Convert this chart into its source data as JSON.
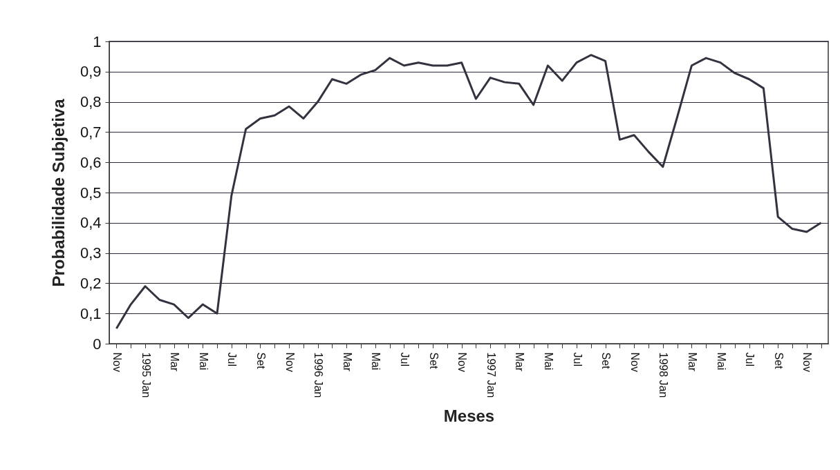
{
  "chart_data": {
    "type": "line",
    "xlabel": "Meses",
    "ylabel": "Probabilidade Subjetiva",
    "categories": [
      "Nov",
      null,
      "1995 Jan",
      null,
      "Mar",
      null,
      "Mai",
      null,
      "Jul",
      null,
      "Set",
      null,
      "Nov",
      null,
      "1996 Jan",
      null,
      "Mar",
      null,
      "Mai",
      null,
      "Jul",
      null,
      "Set",
      null,
      "Nov",
      null,
      "1997 Jan",
      null,
      "Mar",
      null,
      "Mai",
      null,
      "Jul",
      null,
      "Set",
      null,
      "Nov",
      null,
      "1998 Jan",
      null,
      "Mar",
      null,
      "Mai",
      null,
      "Jul",
      null,
      "Set",
      null,
      "Nov",
      null
    ],
    "series": [
      {
        "color": "#333340",
        "values": [
          0.05,
          0.13,
          0.19,
          0.145,
          0.13,
          0.085,
          0.13,
          0.1,
          0.49,
          0.71,
          0.745,
          0.755,
          0.785,
          0.745,
          0.8,
          0.875,
          0.86,
          0.89,
          0.905,
          0.945,
          0.92,
          0.93,
          0.92,
          0.92,
          0.93,
          0.81,
          0.88,
          0.865,
          0.86,
          0.79,
          0.92,
          0.87,
          0.93,
          0.955,
          0.935,
          0.675,
          0.69,
          0.635,
          0.585,
          0.75,
          0.92,
          0.945,
          0.93,
          0.895,
          0.875,
          0.845,
          0.42,
          0.38,
          0.37,
          0.4
        ]
      }
    ],
    "ylim": [
      0,
      1
    ],
    "yticks": [
      0,
      {
        "value": 0.1,
        "label": "0,1"
      },
      {
        "value": 0.2,
        "label": "0,2"
      },
      {
        "value": 0.3,
        "label": "0,3"
      },
      {
        "value": 0.4,
        "label": "0,4"
      },
      {
        "value": 0.5,
        "label": "0,5"
      },
      {
        "value": 0.6,
        "label": "0,6"
      },
      {
        "value": 0.7,
        "label": "0,7"
      },
      {
        "value": 0.8,
        "label": "0,8"
      },
      {
        "value": 0.9,
        "label": "0,9"
      },
      1
    ],
    "grid": "y",
    "marker": "none",
    "line_style": "solid"
  }
}
